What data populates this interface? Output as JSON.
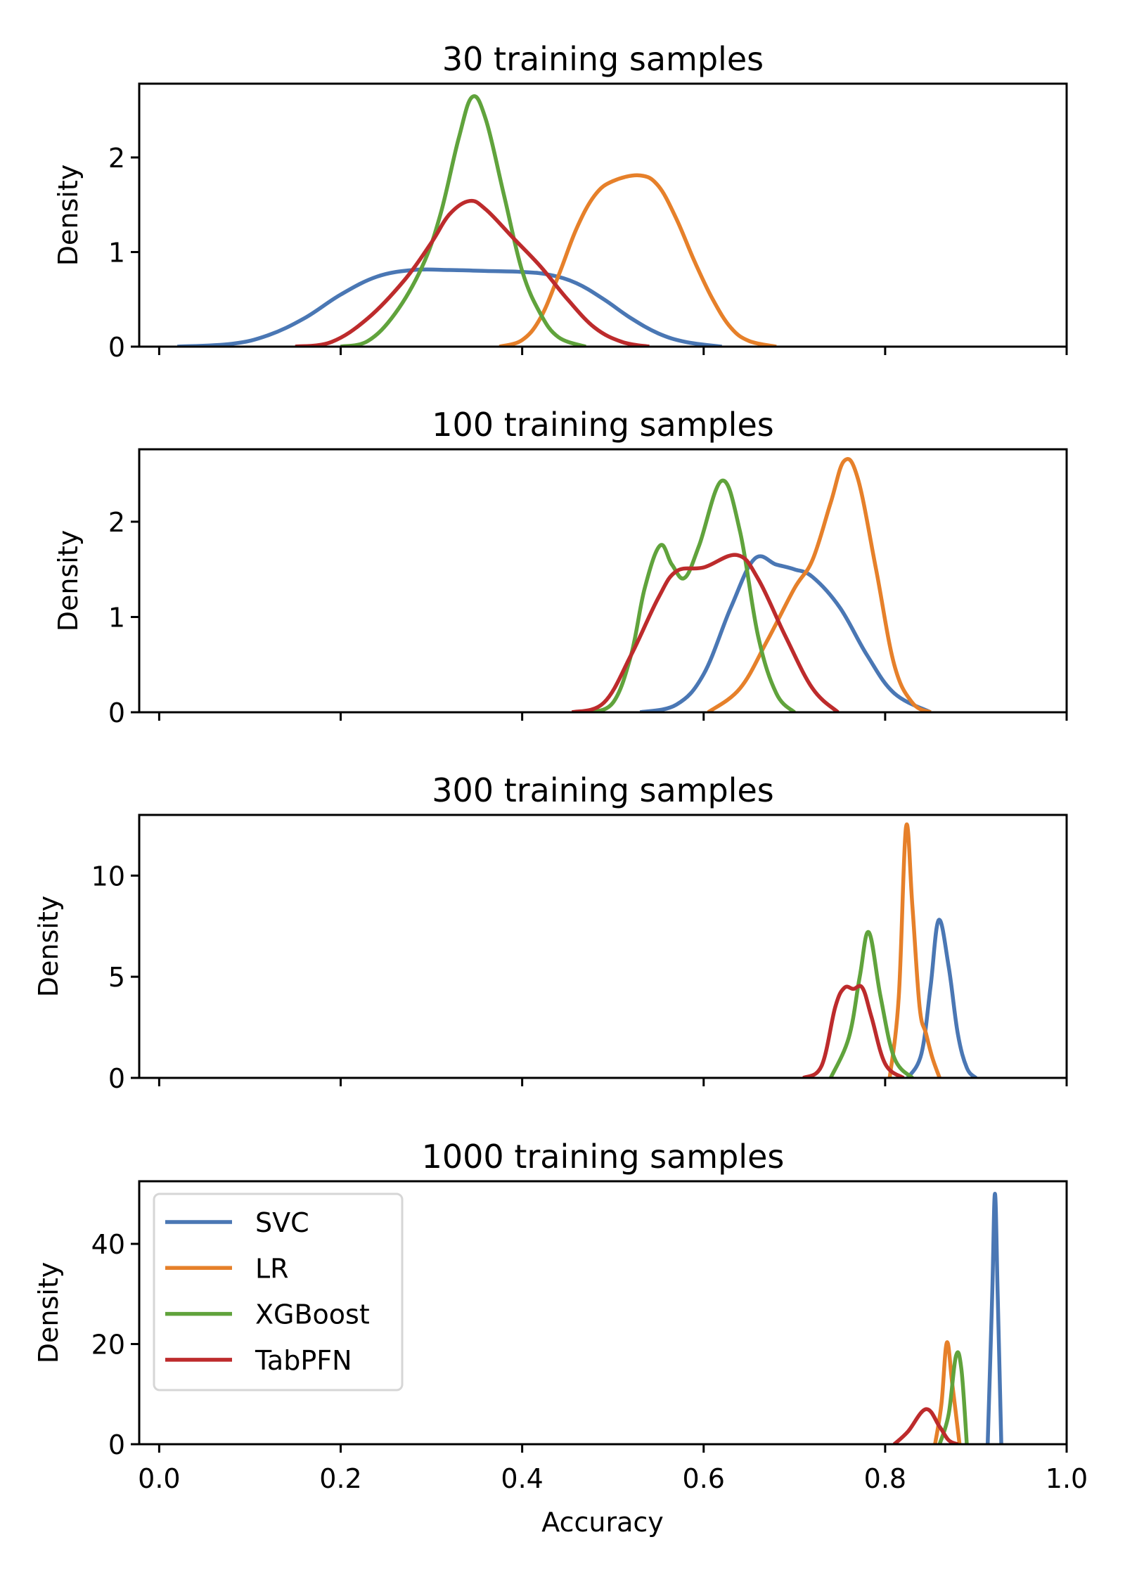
{
  "chart_data": {
    "type": "line",
    "figure_kind": "kernel density estimate, 4 stacked subplots with shared x-axis",
    "xlabel": "Accuracy",
    "ylabel": "Density",
    "xlim": [
      -0.022,
      1.0
    ],
    "x_ticks": [
      0.0,
      0.2,
      0.4,
      0.6,
      0.8,
      1.0
    ],
    "x_tick_labels": [
      "0.0",
      "0.2",
      "0.4",
      "0.6",
      "0.8",
      "1.0"
    ],
    "grid": false,
    "legend": {
      "placement": "upper-left of bottom subplot",
      "entries": [
        "SVC",
        "LR",
        "XGBoost",
        "TabPFN"
      ]
    },
    "colors": {
      "SVC": "#4a77b4",
      "LR": "#e6802a",
      "XGBoost": "#60a33c",
      "TabPFN": "#bd2b2c"
    },
    "panels": [
      {
        "title": "30 training samples",
        "ylim": [
          0,
          2.78
        ],
        "y_ticks": [
          0,
          1,
          2
        ],
        "y_tick_labels": [
          "0",
          "1",
          "2"
        ],
        "series": [
          {
            "name": "SVC",
            "points": [
              [
                0.02,
                0
              ],
              [
                0.08,
                0.03
              ],
              [
                0.12,
                0.12
              ],
              [
                0.16,
                0.3
              ],
              [
                0.2,
                0.55
              ],
              [
                0.24,
                0.74
              ],
              [
                0.28,
                0.81
              ],
              [
                0.32,
                0.81
              ],
              [
                0.36,
                0.8
              ],
              [
                0.4,
                0.79
              ],
              [
                0.43,
                0.76
              ],
              [
                0.46,
                0.67
              ],
              [
                0.49,
                0.5
              ],
              [
                0.52,
                0.3
              ],
              [
                0.55,
                0.14
              ],
              [
                0.58,
                0.05
              ],
              [
                0.62,
                0
              ]
            ]
          },
          {
            "name": "LR",
            "points": [
              [
                0.375,
                0
              ],
              [
                0.4,
                0.07
              ],
              [
                0.42,
                0.3
              ],
              [
                0.44,
                0.75
              ],
              [
                0.46,
                1.25
              ],
              [
                0.48,
                1.6
              ],
              [
                0.5,
                1.75
              ],
              [
                0.53,
                1.81
              ],
              [
                0.55,
                1.7
              ],
              [
                0.57,
                1.35
              ],
              [
                0.59,
                0.9
              ],
              [
                0.61,
                0.5
              ],
              [
                0.63,
                0.2
              ],
              [
                0.65,
                0.06
              ],
              [
                0.68,
                0
              ]
            ]
          },
          {
            "name": "XGBoost",
            "points": [
              [
                0.2,
                0
              ],
              [
                0.23,
                0.06
              ],
              [
                0.26,
                0.35
              ],
              [
                0.29,
                0.85
              ],
              [
                0.31,
                1.4
              ],
              [
                0.33,
                2.2
              ],
              [
                0.345,
                2.64
              ],
              [
                0.36,
                2.4
              ],
              [
                0.38,
                1.6
              ],
              [
                0.4,
                0.8
              ],
              [
                0.42,
                0.35
              ],
              [
                0.44,
                0.1
              ],
              [
                0.47,
                0
              ]
            ]
          },
          {
            "name": "TabPFN",
            "points": [
              [
                0.15,
                0
              ],
              [
                0.19,
                0.05
              ],
              [
                0.23,
                0.3
              ],
              [
                0.27,
                0.7
              ],
              [
                0.3,
                1.1
              ],
              [
                0.32,
                1.4
              ],
              [
                0.342,
                1.54
              ],
              [
                0.36,
                1.45
              ],
              [
                0.39,
                1.15
              ],
              [
                0.42,
                0.85
              ],
              [
                0.45,
                0.5
              ],
              [
                0.48,
                0.2
              ],
              [
                0.51,
                0.05
              ],
              [
                0.54,
                0
              ]
            ]
          }
        ]
      },
      {
        "title": "100 training samples",
        "ylim": [
          0,
          2.76
        ],
        "y_ticks": [
          0,
          1,
          2
        ],
        "y_tick_labels": [
          "0",
          "1",
          "2"
        ],
        "series": [
          {
            "name": "SVC",
            "points": [
              [
                0.53,
                0
              ],
              [
                0.57,
                0.08
              ],
              [
                0.6,
                0.4
              ],
              [
                0.63,
                1.1
              ],
              [
                0.656,
                1.61
              ],
              [
                0.68,
                1.55
              ],
              [
                0.7,
                1.5
              ],
              [
                0.72,
                1.42
              ],
              [
                0.75,
                1.1
              ],
              [
                0.78,
                0.6
              ],
              [
                0.81,
                0.2
              ],
              [
                0.85,
                0
              ]
            ]
          },
          {
            "name": "LR",
            "points": [
              [
                0.605,
                0
              ],
              [
                0.64,
                0.25
              ],
              [
                0.67,
                0.75
              ],
              [
                0.7,
                1.3
              ],
              [
                0.72,
                1.6
              ],
              [
                0.74,
                2.2
              ],
              [
                0.755,
                2.64
              ],
              [
                0.77,
                2.45
              ],
              [
                0.79,
                1.5
              ],
              [
                0.81,
                0.5
              ],
              [
                0.83,
                0.1
              ],
              [
                0.85,
                0
              ]
            ]
          },
          {
            "name": "XGBoost",
            "points": [
              [
                0.473,
                0
              ],
              [
                0.5,
                0.1
              ],
              [
                0.52,
                0.6
              ],
              [
                0.535,
                1.3
              ],
              [
                0.552,
                1.75
              ],
              [
                0.565,
                1.55
              ],
              [
                0.579,
                1.41
              ],
              [
                0.595,
                1.75
              ],
              [
                0.62,
                2.43
              ],
              [
                0.64,
                1.9
              ],
              [
                0.66,
                0.8
              ],
              [
                0.68,
                0.2
              ],
              [
                0.7,
                0
              ]
            ]
          },
          {
            "name": "TabPFN",
            "points": [
              [
                0.455,
                0
              ],
              [
                0.49,
                0.1
              ],
              [
                0.52,
                0.6
              ],
              [
                0.55,
                1.2
              ],
              [
                0.57,
                1.48
              ],
              [
                0.6,
                1.52
              ],
              [
                0.637,
                1.65
              ],
              [
                0.66,
                1.4
              ],
              [
                0.69,
                0.8
              ],
              [
                0.72,
                0.25
              ],
              [
                0.748,
                0
              ]
            ]
          }
        ]
      },
      {
        "title": "300 training samples",
        "ylim": [
          0,
          13.0
        ],
        "y_ticks": [
          0,
          5,
          10
        ],
        "y_tick_labels": [
          "0",
          "5",
          "10"
        ],
        "series": [
          {
            "name": "SVC",
            "points": [
              [
                0.825,
                0
              ],
              [
                0.84,
                1.2
              ],
              [
                0.85,
                4.5
              ],
              [
                0.859,
                7.8
              ],
              [
                0.87,
                5.5
              ],
              [
                0.88,
                2.2
              ],
              [
                0.89,
                0.5
              ],
              [
                0.9,
                0
              ]
            ]
          },
          {
            "name": "LR",
            "points": [
              [
                0.805,
                0
              ],
              [
                0.815,
                4.0
              ],
              [
                0.823,
                12.4
              ],
              [
                0.83,
                8.5
              ],
              [
                0.838,
                3.5
              ],
              [
                0.845,
                2.2
              ],
              [
                0.852,
                1.0
              ],
              [
                0.86,
                0
              ]
            ]
          },
          {
            "name": "XGBoost",
            "points": [
              [
                0.74,
                0
              ],
              [
                0.76,
                2.0
              ],
              [
                0.772,
                5.0
              ],
              [
                0.782,
                7.2
              ],
              [
                0.795,
                4.0
              ],
              [
                0.81,
                1.0
              ],
              [
                0.83,
                0
              ]
            ]
          },
          {
            "name": "TabPFN",
            "points": [
              [
                0.71,
                0
              ],
              [
                0.73,
                0.6
              ],
              [
                0.745,
                3.5
              ],
              [
                0.755,
                4.45
              ],
              [
                0.765,
                4.4
              ],
              [
                0.775,
                4.45
              ],
              [
                0.785,
                3.0
              ],
              [
                0.8,
                0.7
              ],
              [
                0.82,
                0
              ]
            ]
          }
        ]
      },
      {
        "title": "1000 training samples",
        "ylim": [
          0,
          52.5
        ],
        "y_ticks": [
          0,
          20,
          40
        ],
        "y_tick_labels": [
          "0",
          "20",
          "40"
        ],
        "series": [
          {
            "name": "SVC",
            "points": [
              [
                0.913,
                0
              ],
              [
                0.918,
                30
              ],
              [
                0.921,
                50
              ],
              [
                0.924,
                30
              ],
              [
                0.928,
                0
              ]
            ]
          },
          {
            "name": "LR",
            "points": [
              [
                0.855,
                0
              ],
              [
                0.862,
                8
              ],
              [
                0.868,
                20.3
              ],
              [
                0.874,
                12
              ],
              [
                0.882,
                0
              ]
            ]
          },
          {
            "name": "XGBoost",
            "points": [
              [
                0.86,
                0
              ],
              [
                0.87,
                6
              ],
              [
                0.878,
                17.6
              ],
              [
                0.884,
                15
              ],
              [
                0.89,
                0
              ]
            ]
          },
          {
            "name": "TabPFN",
            "points": [
              [
                0.81,
                0
              ],
              [
                0.825,
                2.5
              ],
              [
                0.845,
                7.0
              ],
              [
                0.86,
                3.5
              ],
              [
                0.87,
                0.8
              ],
              [
                0.88,
                0
              ]
            ]
          }
        ]
      }
    ]
  }
}
